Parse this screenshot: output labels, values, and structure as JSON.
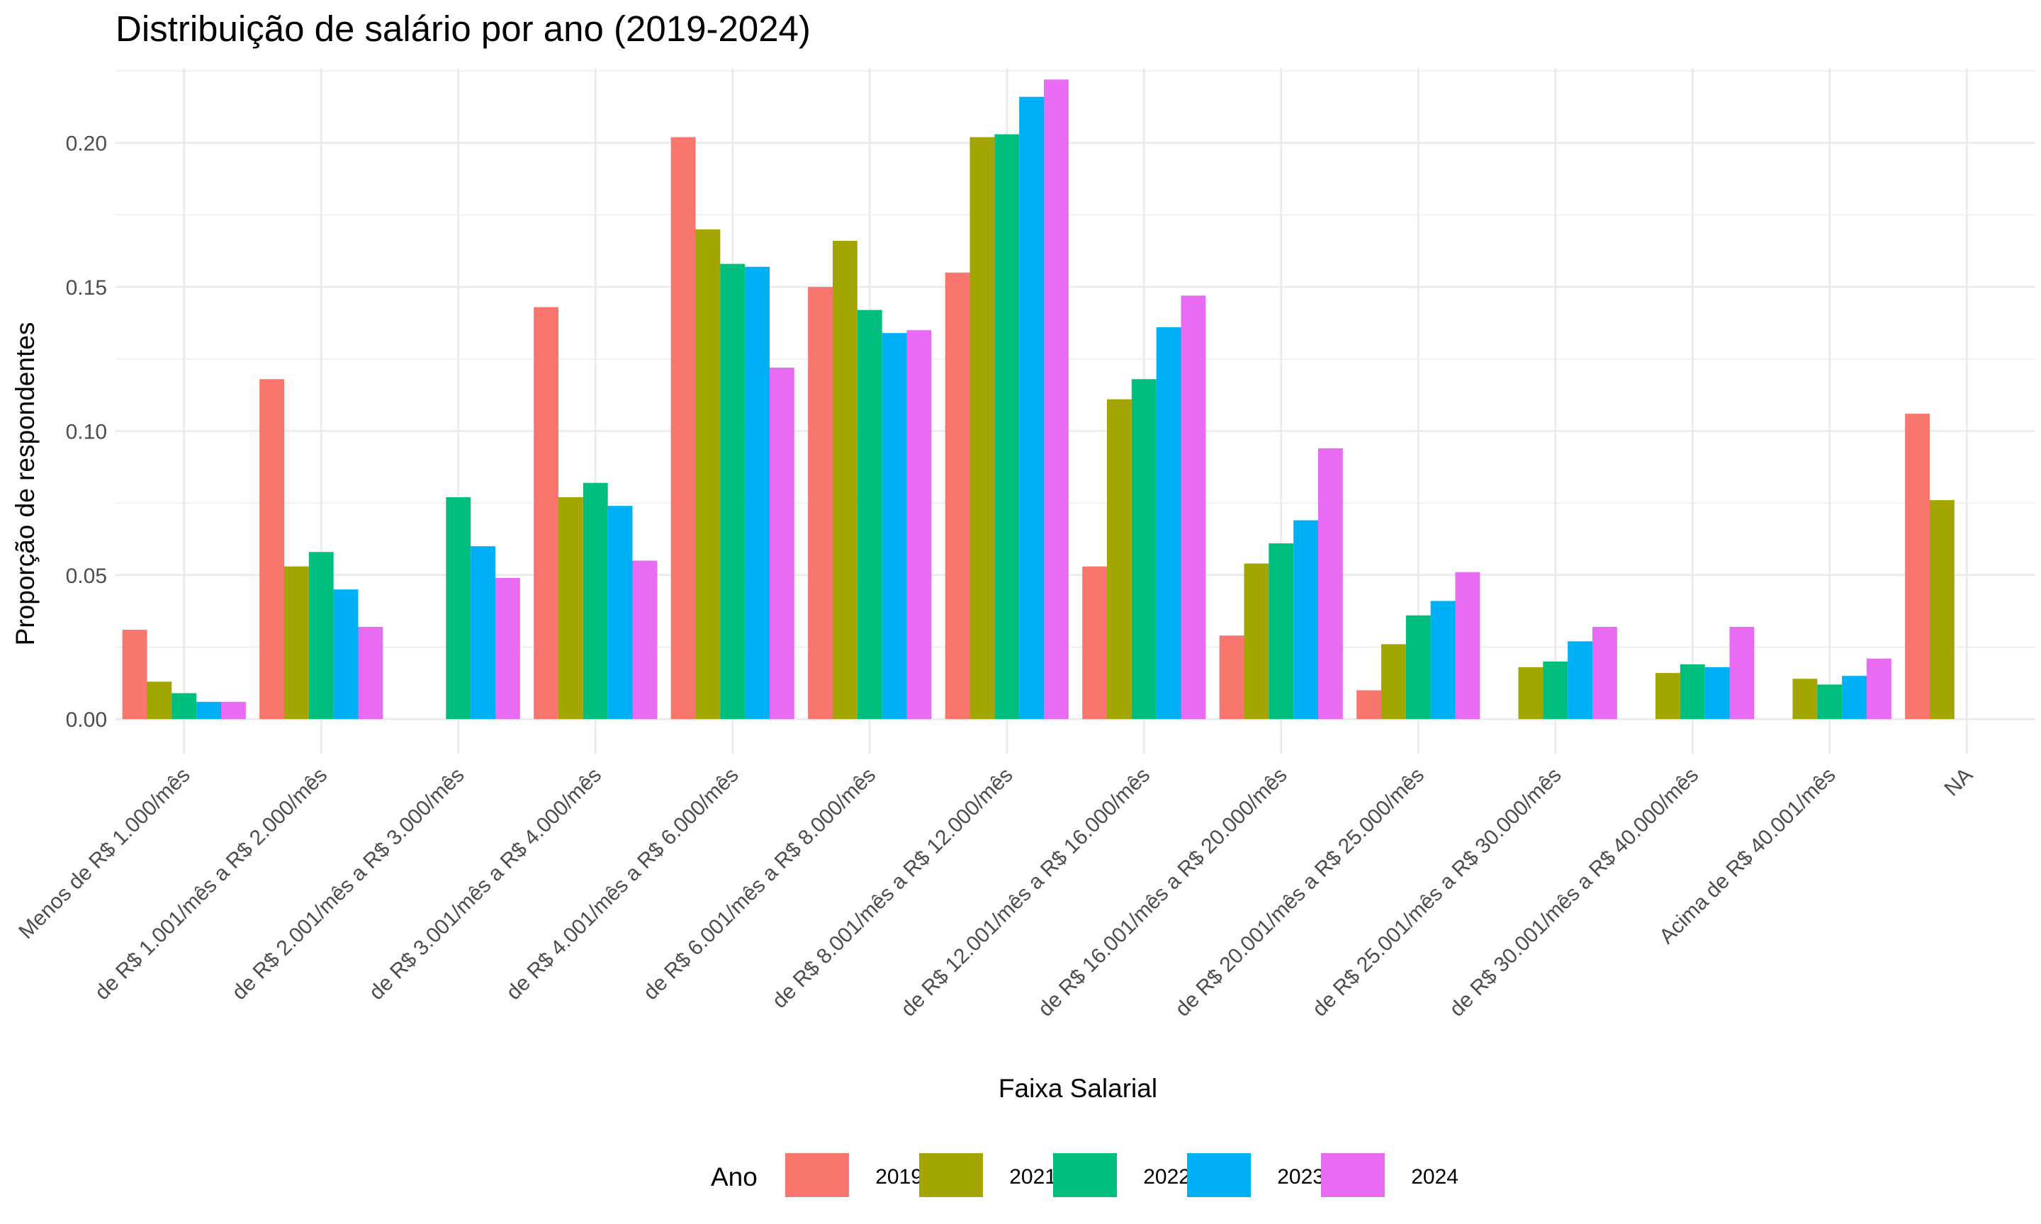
{
  "chart_data": {
    "type": "bar",
    "title": "Distribuição de salário por ano (2019-2024)",
    "xlabel": "Faixa Salarial",
    "ylabel": "Proporção de respondentes",
    "ylim": [
      -0.012,
      0.226
    ],
    "yticks": [
      "0.00",
      "0.05",
      "0.10",
      "0.15",
      "0.20"
    ],
    "grid": true,
    "legend": {
      "title": "Ano",
      "position": "bottom"
    },
    "categories": [
      "Menos de R$ 1.000/mês",
      "de R$ 1.001/mês a R$ 2.000/mês",
      "de R$ 2.001/mês a R$ 3.000/mês",
      "de R$ 3.001/mês a R$ 4.000/mês",
      "de R$ 4.001/mês a R$ 6.000/mês",
      "de R$ 6.001/mês a R$ 8.000/mês",
      "de R$ 8.001/mês a R$ 12.000/mês",
      "de R$ 12.001/mês a R$ 16.000/mês",
      "de R$ 16.001/mês a R$ 20.000/mês",
      "de R$ 20.001/mês a R$ 25.000/mês",
      "de R$ 25.001/mês a R$ 30.000/mês",
      "de R$ 30.001/mês a R$ 40.000/mês",
      "Acima de R$ 40.001/mês",
      "NA"
    ],
    "series": [
      {
        "name": "2019",
        "color": "#F8766D",
        "values": [
          0.031,
          0.118,
          null,
          0.143,
          0.202,
          0.15,
          0.155,
          0.053,
          0.029,
          0.01,
          null,
          null,
          null,
          0.106
        ]
      },
      {
        "name": "2021",
        "color": "#A3A500",
        "values": [
          0.013,
          0.053,
          null,
          0.077,
          0.17,
          0.166,
          0.202,
          0.111,
          0.054,
          0.026,
          0.018,
          0.016,
          0.014,
          0.076
        ]
      },
      {
        "name": "2022",
        "color": "#00BF7D",
        "values": [
          0.009,
          0.058,
          0.077,
          0.082,
          0.158,
          0.142,
          0.203,
          0.118,
          0.061,
          0.036,
          0.02,
          0.019,
          0.012,
          null
        ]
      },
      {
        "name": "2023",
        "color": "#00B0F6",
        "values": [
          0.006,
          0.045,
          0.06,
          0.074,
          0.157,
          0.134,
          0.216,
          0.136,
          0.069,
          0.041,
          0.027,
          0.018,
          0.015,
          null
        ]
      },
      {
        "name": "2024",
        "color": "#E76BF3",
        "values": [
          0.006,
          0.032,
          0.049,
          0.055,
          0.122,
          0.135,
          0.222,
          0.147,
          0.094,
          0.051,
          0.032,
          0.032,
          0.021,
          null
        ]
      }
    ]
  }
}
